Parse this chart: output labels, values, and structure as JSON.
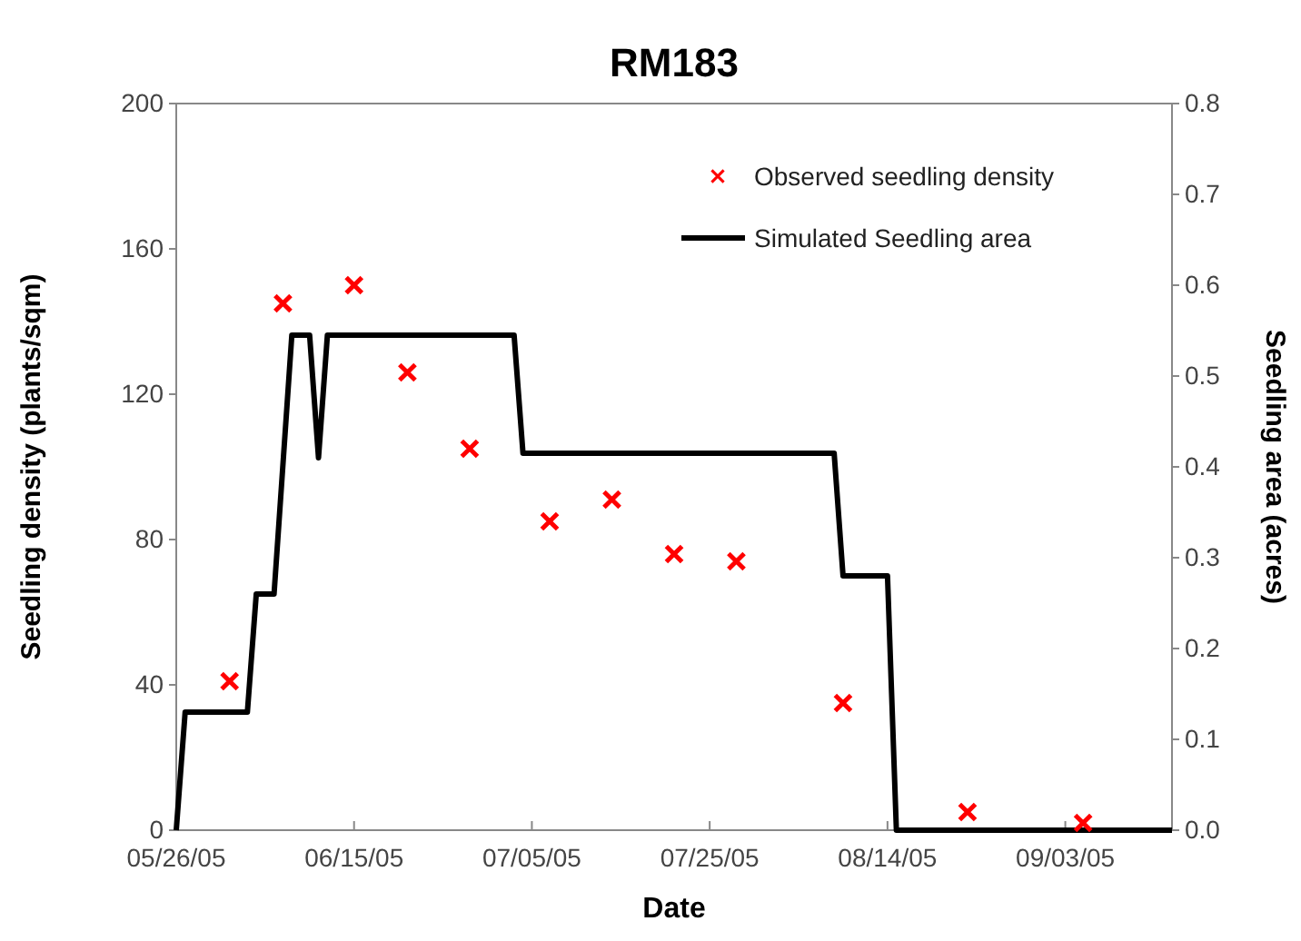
{
  "chart_data": {
    "type": "scatter",
    "title": "RM183",
    "xlabel": "Date",
    "ylabel": "Seedling density (plants/sqm)",
    "y2label": "Seedling area (acres)",
    "xlim": [
      "2005-05-26",
      "2005-09-15"
    ],
    "xticks": [
      {
        "value": "2005-05-26",
        "label": "05/26/05"
      },
      {
        "value": "2005-06-15",
        "label": "06/15/05"
      },
      {
        "value": "2005-07-05",
        "label": "07/05/05"
      },
      {
        "value": "2005-07-25",
        "label": "07/25/05"
      },
      {
        "value": "2005-08-14",
        "label": "08/14/05"
      },
      {
        "value": "2005-09-03",
        "label": "09/03/05"
      }
    ],
    "ylim": [
      0,
      200
    ],
    "yticks": [
      0,
      40,
      80,
      120,
      160,
      200
    ],
    "y2lim": [
      0,
      0.8
    ],
    "y2ticks": [
      {
        "value": 0,
        "label": "0.0"
      },
      0.1,
      0.2,
      0.3,
      0.4,
      0.5,
      0.6,
      0.7,
      0.8
    ],
    "grid": false,
    "legend": "top right",
    "series": [
      {
        "name": "Observed seedling density",
        "type": "scatter",
        "marker": "cross",
        "color": "#ff0000",
        "x": [
          "2005-06-01",
          "2005-06-07",
          "2005-06-15",
          "2005-06-21",
          "2005-06-28",
          "2005-07-07",
          "2005-07-14",
          "2005-07-21",
          "2005-07-28",
          "2005-08-09",
          "2005-08-23",
          "2005-09-05"
        ],
        "values": [
          41,
          145,
          150,
          126,
          105,
          85,
          91,
          76,
          74,
          35,
          5,
          2
        ]
      },
      {
        "name": "Simulated Seedling area",
        "type": "line",
        "axis": "y2",
        "marker": "none",
        "line_style": "solid",
        "color": "#000000",
        "x": [
          "2005-05-26",
          "2005-05-27",
          "2005-06-03",
          "2005-06-04",
          "2005-06-06",
          "2005-06-08",
          "2005-06-10",
          "2005-06-11",
          "2005-06-12",
          "2005-07-03",
          "2005-07-04",
          "2005-08-08",
          "2005-08-09",
          "2005-08-14",
          "2005-08-15",
          "2005-09-15"
        ],
        "values": [
          0,
          0.13,
          0.13,
          0.26,
          0.26,
          0.545,
          0.545,
          0.41,
          0.545,
          0.545,
          0.415,
          0.415,
          0.28,
          0.28,
          0,
          0
        ]
      }
    ]
  }
}
